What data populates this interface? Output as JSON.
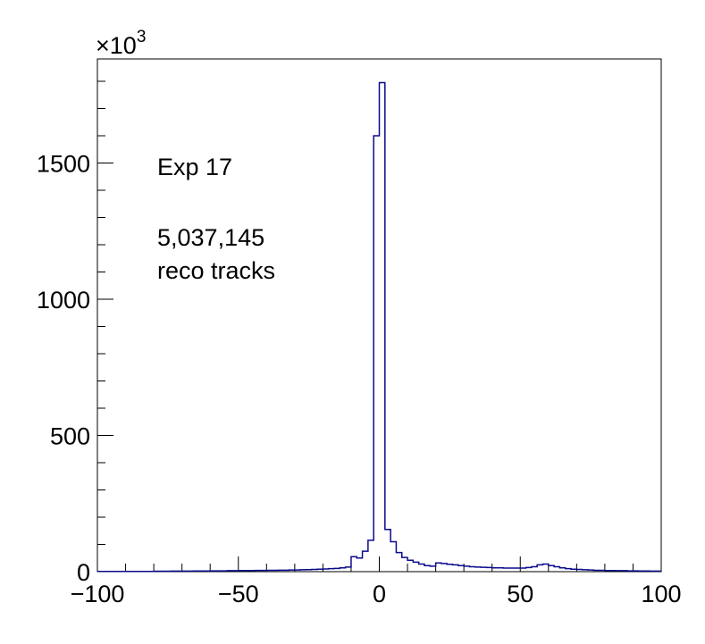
{
  "chart_data": {
    "type": "histogram",
    "title": "",
    "xlabel": "",
    "ylabel": "",
    "y_multiplier_label": {
      "base": "×10",
      "exponent": "3"
    },
    "xlim": [
      -100,
      100
    ],
    "ylim": [
      0,
      1800
    ],
    "x_ticks": [
      -100,
      -50,
      0,
      50,
      100
    ],
    "x_tick_labels": [
      "−100",
      "−50",
      "0",
      "50",
      "100"
    ],
    "y_ticks": [
      0,
      500,
      1000,
      1500
    ],
    "y_tick_labels": [
      "0",
      "500",
      "1000",
      "1500"
    ],
    "grid": false,
    "line_color": "#0a0a8c",
    "bin_width": 2,
    "bins": [
      [
        -100,
        1
      ],
      [
        -98,
        1
      ],
      [
        -96,
        1
      ],
      [
        -94,
        1
      ],
      [
        -92,
        1
      ],
      [
        -90,
        1
      ],
      [
        -88,
        1
      ],
      [
        -86,
        1
      ],
      [
        -84,
        1
      ],
      [
        -82,
        1
      ],
      [
        -80,
        1.5
      ],
      [
        -78,
        1.5
      ],
      [
        -76,
        1.5
      ],
      [
        -74,
        2
      ],
      [
        -72,
        2
      ],
      [
        -70,
        2
      ],
      [
        -68,
        2
      ],
      [
        -66,
        2.5
      ],
      [
        -64,
        2.5
      ],
      [
        -62,
        2.5
      ],
      [
        -60,
        3
      ],
      [
        -58,
        3
      ],
      [
        -56,
        3
      ],
      [
        -54,
        3.5
      ],
      [
        -52,
        3.5
      ],
      [
        -50,
        4
      ],
      [
        -48,
        4
      ],
      [
        -46,
        4
      ],
      [
        -44,
        4.5
      ],
      [
        -42,
        4.5
      ],
      [
        -40,
        5
      ],
      [
        -38,
        5
      ],
      [
        -36,
        5.5
      ],
      [
        -34,
        5.5
      ],
      [
        -32,
        6
      ],
      [
        -30,
        6
      ],
      [
        -28,
        7
      ],
      [
        -26,
        7.5
      ],
      [
        -24,
        8
      ],
      [
        -22,
        9
      ],
      [
        -20,
        10
      ],
      [
        -18,
        11
      ],
      [
        -16,
        12
      ],
      [
        -14,
        14
      ],
      [
        -12,
        17
      ],
      [
        -10,
        55
      ],
      [
        -8,
        50
      ],
      [
        -6,
        75
      ],
      [
        -4,
        115
      ],
      [
        -2,
        1600
      ],
      [
        0,
        1795
      ],
      [
        2,
        155
      ],
      [
        4,
        110
      ],
      [
        6,
        70
      ],
      [
        8,
        52
      ],
      [
        10,
        42
      ],
      [
        12,
        35
      ],
      [
        14,
        28
      ],
      [
        16,
        22
      ],
      [
        18,
        20
      ],
      [
        20,
        32
      ],
      [
        22,
        30
      ],
      [
        24,
        27
      ],
      [
        26,
        25
      ],
      [
        28,
        22
      ],
      [
        30,
        20
      ],
      [
        32,
        18
      ],
      [
        34,
        17
      ],
      [
        36,
        16
      ],
      [
        38,
        15
      ],
      [
        40,
        14
      ],
      [
        42,
        14
      ],
      [
        44,
        13
      ],
      [
        46,
        13
      ],
      [
        48,
        13
      ],
      [
        50,
        13
      ],
      [
        52,
        15
      ],
      [
        54,
        18
      ],
      [
        56,
        25
      ],
      [
        58,
        28
      ],
      [
        60,
        22
      ],
      [
        62,
        18
      ],
      [
        64,
        14
      ],
      [
        66,
        11
      ],
      [
        68,
        9
      ],
      [
        70,
        8
      ],
      [
        72,
        7
      ],
      [
        74,
        6
      ],
      [
        76,
        5
      ],
      [
        78,
        5
      ],
      [
        80,
        4
      ],
      [
        82,
        4
      ],
      [
        84,
        3.5
      ],
      [
        86,
        3.5
      ],
      [
        88,
        3
      ],
      [
        90,
        3
      ],
      [
        92,
        2.5
      ],
      [
        94,
        2.5
      ],
      [
        96,
        2
      ],
      [
        98,
        2
      ]
    ],
    "annotations": [
      "Exp 17",
      "5,037,145",
      "reco tracks"
    ]
  }
}
